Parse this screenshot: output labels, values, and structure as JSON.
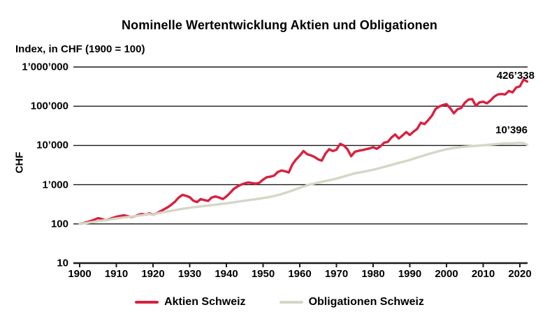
{
  "title": "Nominelle Wertentwicklung Aktien und Obligationen",
  "subtitle": "Index, in CHF (1900 = 100)",
  "y_axis_unit": "CHF",
  "chart_data": {
    "type": "line",
    "y_scale": "log",
    "grid": "horizontal",
    "legend_position": "bottom",
    "xlim": [
      1900,
      2022
    ],
    "ylim": [
      10,
      1000000
    ],
    "x_ticks": [
      1900,
      1910,
      1920,
      1930,
      1940,
      1950,
      1960,
      1970,
      1980,
      1990,
      2000,
      2010,
      2020
    ],
    "y_ticks": [
      {
        "value": 10,
        "label": "10"
      },
      {
        "value": 100,
        "label": "100"
      },
      {
        "value": 1000,
        "label": "1’000"
      },
      {
        "value": 10000,
        "label": "10’000"
      },
      {
        "value": 100000,
        "label": "100’000"
      },
      {
        "value": 1000000,
        "label": "1’000’000"
      }
    ],
    "x": [
      1900,
      1901,
      1902,
      1903,
      1904,
      1905,
      1906,
      1907,
      1908,
      1909,
      1910,
      1911,
      1912,
      1913,
      1914,
      1915,
      1916,
      1917,
      1918,
      1919,
      1920,
      1921,
      1922,
      1923,
      1924,
      1925,
      1926,
      1927,
      1928,
      1929,
      1930,
      1931,
      1932,
      1933,
      1934,
      1935,
      1936,
      1937,
      1938,
      1939,
      1940,
      1941,
      1942,
      1943,
      1944,
      1945,
      1946,
      1947,
      1948,
      1949,
      1950,
      1951,
      1952,
      1953,
      1954,
      1955,
      1956,
      1957,
      1958,
      1959,
      1960,
      1961,
      1962,
      1963,
      1964,
      1965,
      1966,
      1967,
      1968,
      1969,
      1970,
      1971,
      1972,
      1973,
      1974,
      1975,
      1976,
      1977,
      1978,
      1979,
      1980,
      1981,
      1982,
      1983,
      1984,
      1985,
      1986,
      1987,
      1988,
      1989,
      1990,
      1991,
      1992,
      1993,
      1994,
      1995,
      1996,
      1997,
      1998,
      1999,
      2000,
      2001,
      2002,
      2003,
      2004,
      2005,
      2006,
      2007,
      2008,
      2009,
      2010,
      2011,
      2012,
      2013,
      2014,
      2015,
      2016,
      2017,
      2018,
      2019,
      2020,
      2021,
      2022
    ],
    "series": [
      {
        "name": "Aktien Schweiz",
        "color": "#d9203f",
        "end_label": "426’338",
        "end_value": 426338,
        "values": [
          100,
          105,
          111,
          119,
          128,
          140,
          134,
          124,
          131,
          142,
          152,
          159,
          166,
          158,
          150,
          156,
          170,
          180,
          172,
          186,
          170,
          185,
          210,
          235,
          265,
          310,
          370,
          470,
          550,
          520,
          480,
          390,
          360,
          430,
          405,
          385,
          470,
          500,
          470,
          430,
          500,
          620,
          780,
          900,
          1000,
          1080,
          1140,
          1100,
          1060,
          1120,
          1350,
          1550,
          1600,
          1700,
          2100,
          2300,
          2200,
          2050,
          3300,
          4400,
          5500,
          7200,
          6000,
          5600,
          5100,
          4400,
          4100,
          6200,
          8000,
          7200,
          7800,
          11000,
          10000,
          8000,
          5300,
          6900,
          7300,
          7600,
          8000,
          8400,
          9000,
          8200,
          9500,
          11800,
          12300,
          16000,
          19000,
          15000,
          18000,
          22000,
          18500,
          22500,
          26500,
          38000,
          35000,
          44000,
          57000,
          85000,
          98000,
          107000,
          113000,
          89000,
          66000,
          84000,
          90000,
          123000,
          148000,
          152000,
          103000,
          126000,
          130000,
          119000,
          140000,
          176000,
          200000,
          205000,
          200000,
          245000,
          225000,
          300000,
          320000,
          480000,
          426338
        ]
      },
      {
        "name": "Obligationen Schweiz",
        "color": "#d7d5c5",
        "end_label": "10’396",
        "end_value": 10396,
        "values": [
          100,
          103,
          106,
          110,
          113,
          117,
          121,
          124,
          128,
          133,
          137,
          141,
          145,
          149,
          153,
          157,
          162,
          167,
          173,
          178,
          168,
          182,
          192,
          199,
          207,
          216,
          225,
          234,
          242,
          250,
          258,
          265,
          273,
          280,
          287,
          293,
          301,
          309,
          317,
          325,
          334,
          345,
          356,
          367,
          378,
          390,
          402,
          414,
          427,
          440,
          455,
          472,
          492,
          515,
          542,
          575,
          615,
          660,
          710,
          768,
          832,
          900,
          965,
          1020,
          1070,
          1125,
          1180,
          1235,
          1295,
          1360,
          1430,
          1520,
          1615,
          1715,
          1825,
          1940,
          2020,
          2110,
          2200,
          2295,
          2395,
          2535,
          2685,
          2845,
          3015,
          3195,
          3385,
          3585,
          3800,
          4030,
          4280,
          4580,
          4900,
          5250,
          5610,
          6000,
          6380,
          6780,
          7190,
          7590,
          8000,
          8300,
          8600,
          8850,
          9100,
          9300,
          9460,
          9620,
          9780,
          9930,
          10080,
          10270,
          10520,
          10670,
          10920,
          11120,
          11270,
          11370,
          11300,
          11520,
          11620,
          11400,
          10396
        ]
      }
    ]
  }
}
